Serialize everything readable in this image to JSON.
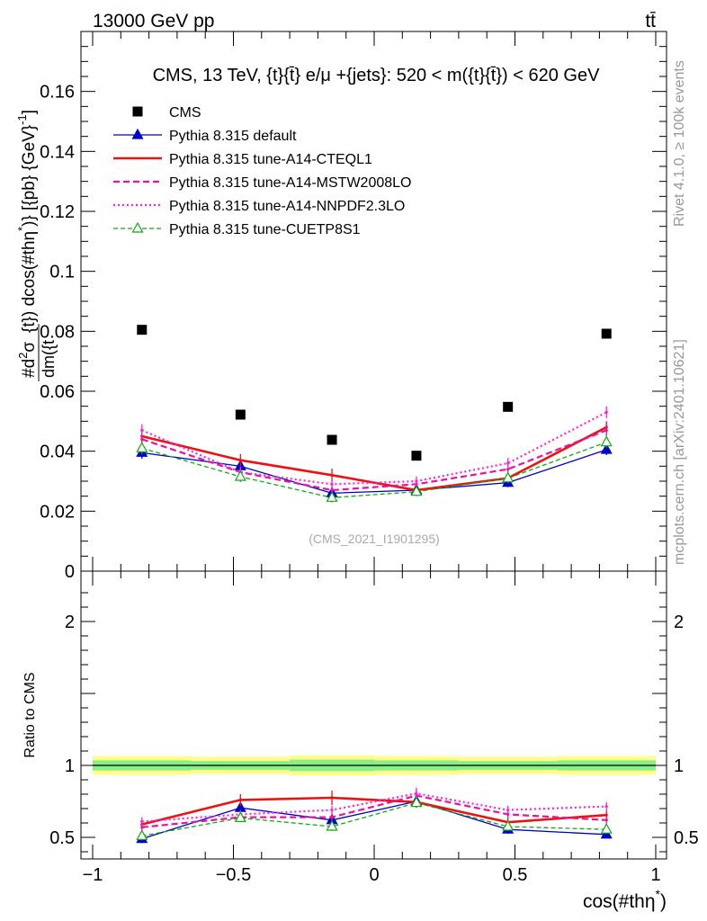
{
  "header": {
    "left_label": "13000 GeV pp",
    "right_label": "tt̄",
    "side_version": "Rivet 4.1.0, ≥ 100k events",
    "side_source": "mcplots.cern.ch [arXiv:2401.10621]"
  },
  "colors": {
    "cms": "#000000",
    "default": "#0000cc",
    "cteql1": "#ee1111",
    "mstw": "#ee1199",
    "nnpdf": "#ff22dd",
    "cuetp8s1": "#11aa11",
    "band_outer": "#ffff88",
    "band_inner": "#88ee88"
  },
  "chart_data": [
    {
      "type": "line",
      "title": "CMS, 13 TeV, {t}{t̄} e/μ +{jets}: 520 < m({t}{t̄}) < 620 GeV",
      "watermark": "(CMS_2021_I1901295)",
      "ylabel": "#d²σ / dm({t̄}) dcos(#thη*)} [{pb} {GeV}⁻¹]",
      "ylabel_parts": {
        "main": "[{pb} {GeV}",
        "sup": "-1",
        "close": "]",
        "numerator": "#d",
        "sigma": "σ",
        "denominator": "dm({t",
        "mid": "{t}) dcos(#thη",
        "star": "*",
        "tail": ")}"
      },
      "ylim": [
        0,
        0.18
      ],
      "yticks": [
        0,
        0.02,
        0.04,
        0.06,
        0.08,
        0.1,
        0.12,
        0.14,
        0.16
      ],
      "ytick_labels": [
        "0",
        "0.02",
        "0.04",
        "0.06",
        "0.08",
        "0.1",
        "0.12",
        "0.14",
        "0.16"
      ],
      "xlim": [
        -1,
        1
      ],
      "x": [
        -0.825,
        -0.475,
        -0.15,
        0.15,
        0.475,
        0.825
      ],
      "series": [
        {
          "key": "cms",
          "name": "CMS",
          "style": "marker",
          "values": [
            0.0805,
            0.0522,
            0.0438,
            0.0385,
            0.0548,
            0.0792
          ],
          "errors": [
            0.001,
            0.001,
            0.001,
            0.001,
            0.001,
            0.001
          ]
        },
        {
          "key": "default",
          "name": "Pythia 8.315 default",
          "style": "solid-triangle",
          "values": [
            0.0395,
            0.035,
            0.026,
            0.027,
            0.0295,
            0.0405
          ],
          "errors": [
            0.002,
            0.0018,
            0.0018,
            0.0015,
            0.0015,
            0.0018
          ]
        },
        {
          "key": "cteql1",
          "name": "Pythia 8.315 tune-A14-CTEQL1",
          "style": "solid-thick",
          "values": [
            0.045,
            0.037,
            0.032,
            0.027,
            0.031,
            0.048
          ],
          "errors": [
            0.0022,
            0.002,
            0.0022,
            0.0015,
            0.0016,
            0.002
          ]
        },
        {
          "key": "mstw",
          "name": "Pythia 8.315 tune-A14-MSTW2008LO",
          "style": "dashed",
          "values": [
            0.044,
            0.033,
            0.027,
            0.029,
            0.034,
            0.047
          ],
          "errors": [
            0.002,
            0.0018,
            0.0018,
            0.0016,
            0.0018,
            0.002
          ]
        },
        {
          "key": "nnpdf",
          "name": "Pythia 8.315 tune-A14-NNPDF2.3LO",
          "style": "dotted",
          "values": [
            0.047,
            0.033,
            0.029,
            0.03,
            0.036,
            0.053
          ],
          "errors": [
            0.002,
            0.0018,
            0.0018,
            0.0016,
            0.0018,
            0.002
          ]
        },
        {
          "key": "cuetp8s1",
          "name": "Pythia 8.315 tune-CUETP8S1",
          "style": "dashed-open-triangle",
          "values": [
            0.041,
            0.0315,
            0.0245,
            0.0265,
            0.031,
            0.043
          ],
          "errors": [
            0.002,
            0.0018,
            0.0016,
            0.0015,
            0.0016,
            0.0018
          ]
        }
      ]
    },
    {
      "type": "line",
      "title": "Ratio to CMS",
      "ylabel": "Ratio to CMS",
      "xlabel": "cos(#thη*)",
      "xlabel_main": "cos(#thη",
      "xlabel_sup": "*",
      "xlabel_close": ")",
      "ylim": [
        0.35,
        2.35
      ],
      "yticks": [
        0.5,
        1,
        2
      ],
      "ytick_labels": [
        "0.5",
        "1",
        "2"
      ],
      "xlim": [
        -1,
        1
      ],
      "xticks": [
        -1,
        -0.5,
        0,
        0.5,
        1
      ],
      "xtick_labels": [
        "−1",
        "−0.5",
        "0",
        "0.5",
        "1"
      ],
      "x": [
        -0.825,
        -0.475,
        -0.15,
        0.15,
        0.475,
        0.825
      ],
      "bins": [
        [
          -1,
          -0.65
        ],
        [
          -0.65,
          -0.3
        ],
        [
          -0.3,
          0
        ],
        [
          0,
          0.3
        ],
        [
          0.3,
          0.65
        ],
        [
          0.65,
          1
        ]
      ],
      "band_outer": [
        0.065,
        0.06,
        0.07,
        0.065,
        0.06,
        0.065
      ],
      "band_inner": [
        0.035,
        0.03,
        0.04,
        0.035,
        0.03,
        0.035
      ],
      "series": [
        {
          "key": "default",
          "name": "Pythia 8.315 default",
          "style": "solid-triangle",
          "values": [
            0.49,
            0.705,
            0.62,
            0.75,
            0.555,
            0.52
          ],
          "errors": [
            0.03,
            0.03,
            0.03,
            0.03,
            0.03,
            0.02
          ]
        },
        {
          "key": "cteql1",
          "name": "Pythia 8.315 tune-A14-CTEQL1",
          "style": "solid-thick",
          "values": [
            0.59,
            0.76,
            0.775,
            0.745,
            0.605,
            0.655
          ],
          "errors": [
            0.03,
            0.04,
            0.05,
            0.04,
            0.03,
            0.03
          ]
        },
        {
          "key": "mstw",
          "name": "Pythia 8.315 tune-A14-MSTW2008LO",
          "style": "dashed",
          "values": [
            0.57,
            0.64,
            0.64,
            0.79,
            0.66,
            0.62
          ],
          "errors": [
            0.03,
            0.03,
            0.03,
            0.04,
            0.03,
            0.03
          ]
        },
        {
          "key": "nnpdf",
          "name": "Pythia 8.315 tune-A14-NNPDF2.3LO",
          "style": "dotted",
          "values": [
            0.61,
            0.66,
            0.69,
            0.805,
            0.69,
            0.715
          ],
          "errors": [
            0.03,
            0.03,
            0.03,
            0.04,
            0.03,
            0.03
          ]
        },
        {
          "key": "cuetp8s1",
          "name": "Pythia 8.315 tune-CUETP8S1",
          "style": "dashed-open-triangle",
          "values": [
            0.51,
            0.635,
            0.575,
            0.74,
            0.575,
            0.555
          ],
          "errors": [
            0.03,
            0.03,
            0.03,
            0.03,
            0.03,
            0.03
          ]
        }
      ]
    }
  ]
}
